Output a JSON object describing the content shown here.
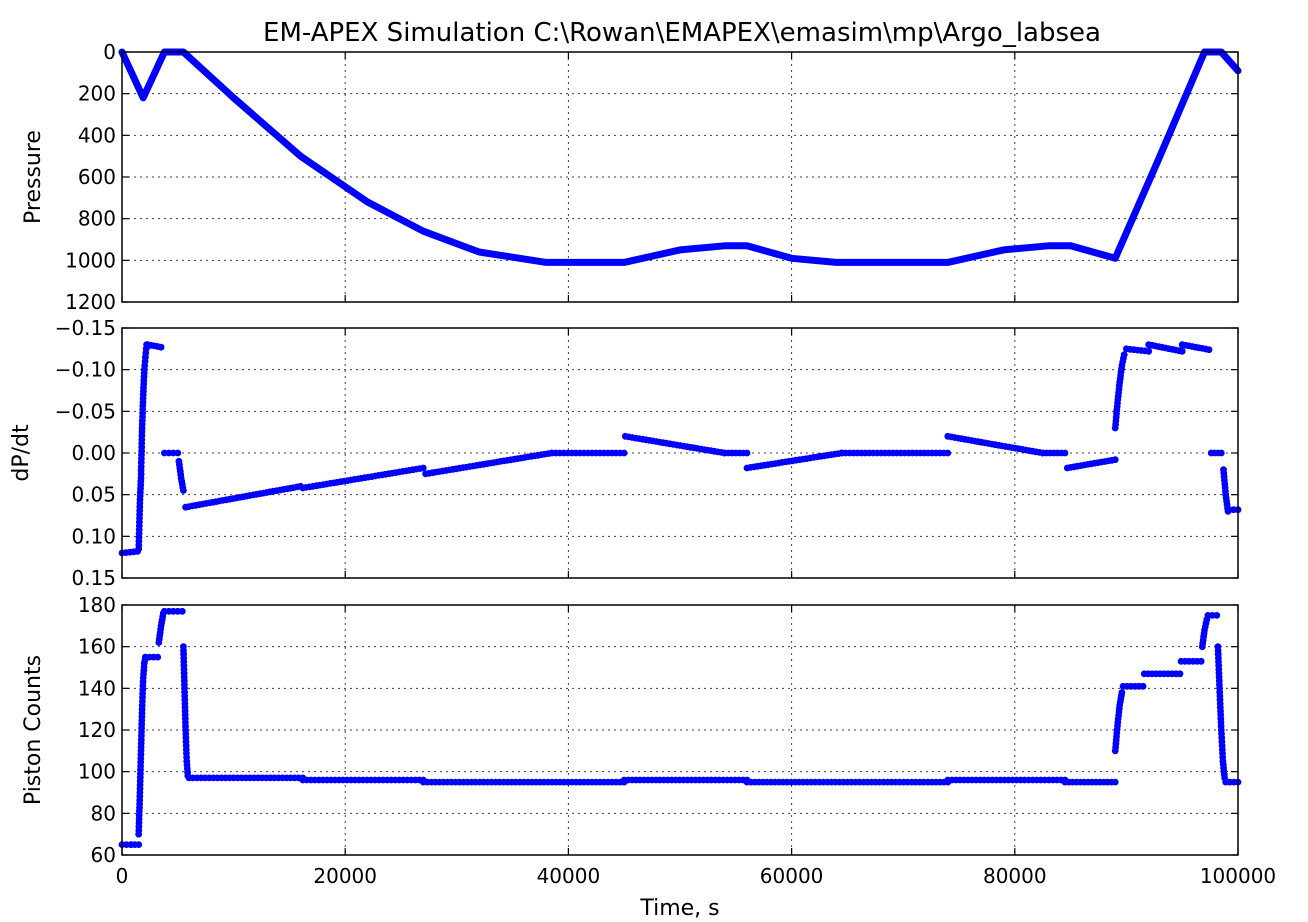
{
  "figure_title": "EM-APEX Simulation C:\\Rowan\\EMAPEX\\emasim\\mp\\Argo_labsea",
  "xlabel": "Time, s",
  "chart_data": [
    {
      "type": "line",
      "name": "pressure",
      "title": "EM-APEX Simulation C:\\Rowan\\EMAPEX\\emasim\\mp\\Argo_labsea",
      "xlabel": "",
      "ylabel": "Pressure",
      "xlim": [
        0,
        100000
      ],
      "ylim": [
        1200,
        0
      ],
      "inverted_y": true,
      "grid": true,
      "xticks": [
        0,
        20000,
        40000,
        60000,
        80000,
        100000
      ],
      "yticks": [
        0,
        200,
        400,
        600,
        800,
        1000,
        1200
      ],
      "x_tick_labels_visible": false,
      "series": [
        {
          "name": "Pressure",
          "color": "#0000ff",
          "x": [
            0,
            1900,
            3800,
            5500,
            10000,
            16000,
            22000,
            27000,
            32000,
            38000,
            45000,
            50000,
            54000,
            56000,
            60000,
            64000,
            74000,
            79000,
            83000,
            85000,
            89000,
            93000,
            97000,
            98500,
            100000
          ],
          "y": [
            0,
            220,
            0,
            0,
            220,
            500,
            720,
            860,
            960,
            1010,
            1010,
            950,
            930,
            930,
            990,
            1010,
            1010,
            950,
            930,
            930,
            990,
            500,
            0,
            0,
            90
          ]
        }
      ]
    },
    {
      "type": "scatter",
      "name": "dpdt",
      "title": "",
      "xlabel": "",
      "ylabel": "dP/dt",
      "xlim": [
        0,
        100000
      ],
      "ylim": [
        0.15,
        -0.15
      ],
      "inverted_y": true,
      "grid": true,
      "xticks": [
        0,
        20000,
        40000,
        60000,
        80000,
        100000
      ],
      "yticks": [
        -0.15,
        -0.1,
        -0.05,
        0.0,
        0.05,
        0.1,
        0.15
      ],
      "ytick_labels": [
        "−0.15",
        "−0.10",
        "−0.05",
        "0.00",
        "0.05",
        "0.10",
        "0.15"
      ],
      "x_tick_labels_visible": false,
      "series": [
        {
          "name": "dP/dt",
          "color": "#0000ff",
          "segments": [
            {
              "x": [
                0,
                1400
              ],
              "y": [
                0.12,
                0.118
              ]
            },
            {
              "x": [
                1500,
                1600,
                1700,
                1800,
                1900,
                2000,
                2100,
                2200
              ],
              "y": [
                0.115,
                0.06,
                0.03,
                -0.03,
                -0.07,
                -0.1,
                -0.115,
                -0.13
              ]
            },
            {
              "x": [
                2300,
                3500
              ],
              "y": [
                -0.13,
                -0.127
              ]
            },
            {
              "x": [
                3800,
                5000
              ],
              "y": [
                0.0,
                0.0
              ]
            },
            {
              "x": [
                5100,
                5300,
                5500
              ],
              "y": [
                0.01,
                0.03,
                0.045
              ]
            },
            {
              "x": [
                5700,
                16000
              ],
              "y": [
                0.065,
                0.04
              ]
            },
            {
              "x": [
                16200,
                27000
              ],
              "y": [
                0.042,
                0.018
              ]
            },
            {
              "x": [
                27200,
                38500
              ],
              "y": [
                0.025,
                0.0
              ]
            },
            {
              "x": [
                38500,
                45000
              ],
              "y": [
                0.0,
                0.0
              ]
            },
            {
              "x": [
                45100,
                54000
              ],
              "y": [
                -0.02,
                0.0
              ]
            },
            {
              "x": [
                54000,
                56000
              ],
              "y": [
                0.0,
                0.0
              ]
            },
            {
              "x": [
                56000,
                64500
              ],
              "y": [
                0.018,
                0.0
              ]
            },
            {
              "x": [
                64500,
                74000
              ],
              "y": [
                0.0,
                0.0
              ]
            },
            {
              "x": [
                74000,
                82500
              ],
              "y": [
                -0.02,
                0.0
              ]
            },
            {
              "x": [
                82500,
                84500
              ],
              "y": [
                0.0,
                0.0
              ]
            },
            {
              "x": [
                84700,
                89000
              ],
              "y": [
                0.018,
                0.008
              ]
            },
            {
              "x": [
                89000,
                89200,
                89400,
                89600,
                89800
              ],
              "y": [
                -0.03,
                -0.06,
                -0.085,
                -0.105,
                -0.118
              ]
            },
            {
              "x": [
                90000,
                92000
              ],
              "y": [
                -0.125,
                -0.122
              ]
            },
            {
              "x": [
                92000,
                95000
              ],
              "y": [
                -0.13,
                -0.122
              ]
            },
            {
              "x": [
                95000,
                97400
              ],
              "y": [
                -0.13,
                -0.124
              ]
            },
            {
              "x": [
                97600,
                98500
              ],
              "y": [
                0.0,
                0.0
              ]
            },
            {
              "x": [
                98700,
                98900,
                99100
              ],
              "y": [
                0.02,
                0.05,
                0.07
              ]
            },
            {
              "x": [
                99200,
                100000
              ],
              "y": [
                0.068,
                0.068
              ]
            }
          ]
        }
      ]
    },
    {
      "type": "scatter",
      "name": "piston",
      "title": "",
      "xlabel": "Time, s",
      "ylabel": "Piston Counts",
      "xlim": [
        0,
        100000
      ],
      "ylim": [
        60,
        180
      ],
      "inverted_y": false,
      "grid": true,
      "xticks": [
        0,
        20000,
        40000,
        60000,
        80000,
        100000
      ],
      "yticks": [
        60,
        80,
        100,
        120,
        140,
        160,
        180
      ],
      "x_tick_labels_visible": true,
      "series": [
        {
          "name": "Piston Counts",
          "color": "#0000ff",
          "segments": [
            {
              "x": [
                0,
                800
              ],
              "y": [
                65,
                65
              ]
            },
            {
              "x": [
                800,
                1500
              ],
              "y": [
                65,
                65
              ]
            },
            {
              "x": [
                1500,
                1600,
                1700,
                1800,
                1900,
                2000,
                2100
              ],
              "y": [
                70,
                90,
                110,
                130,
                145,
                152,
                155
              ]
            },
            {
              "x": [
                2100,
                3200
              ],
              "y": [
                155,
                155
              ]
            },
            {
              "x": [
                3300,
                3500,
                3700
              ],
              "y": [
                162,
                170,
                176
              ]
            },
            {
              "x": [
                3800,
                5400
              ],
              "y": [
                177,
                177
              ]
            },
            {
              "x": [
                5500,
                5600,
                5700,
                5800,
                5900
              ],
              "y": [
                160,
                140,
                120,
                105,
                98
              ]
            },
            {
              "x": [
                6000,
                16200
              ],
              "y": [
                97,
                97
              ]
            },
            {
              "x": [
                16200,
                27000
              ],
              "y": [
                96,
                96
              ]
            },
            {
              "x": [
                27000,
                45000
              ],
              "y": [
                95,
                95
              ]
            },
            {
              "x": [
                45000,
                56000
              ],
              "y": [
                96,
                96
              ]
            },
            {
              "x": [
                56000,
                74000
              ],
              "y": [
                95,
                95
              ]
            },
            {
              "x": [
                74000,
                84500
              ],
              "y": [
                96,
                96
              ]
            },
            {
              "x": [
                84500,
                89000
              ],
              "y": [
                95,
                95
              ]
            },
            {
              "x": [
                89000,
                89200,
                89400,
                89600
              ],
              "y": [
                110,
                122,
                132,
                138
              ]
            },
            {
              "x": [
                89700,
                91500
              ],
              "y": [
                141,
                141
              ]
            },
            {
              "x": [
                91600,
                94800
              ],
              "y": [
                147,
                147
              ]
            },
            {
              "x": [
                94900,
                96700
              ],
              "y": [
                153,
                153
              ]
            },
            {
              "x": [
                96800,
                97000,
                97200
              ],
              "y": [
                160,
                168,
                173
              ]
            },
            {
              "x": [
                97300,
                98100
              ],
              "y": [
                175,
                175
              ]
            },
            {
              "x": [
                98200,
                98350,
                98500,
                98650,
                98800
              ],
              "y": [
                160,
                140,
                120,
                105,
                97
              ]
            },
            {
              "x": [
                98900,
                100000
              ],
              "y": [
                95,
                95
              ]
            }
          ]
        }
      ]
    }
  ]
}
